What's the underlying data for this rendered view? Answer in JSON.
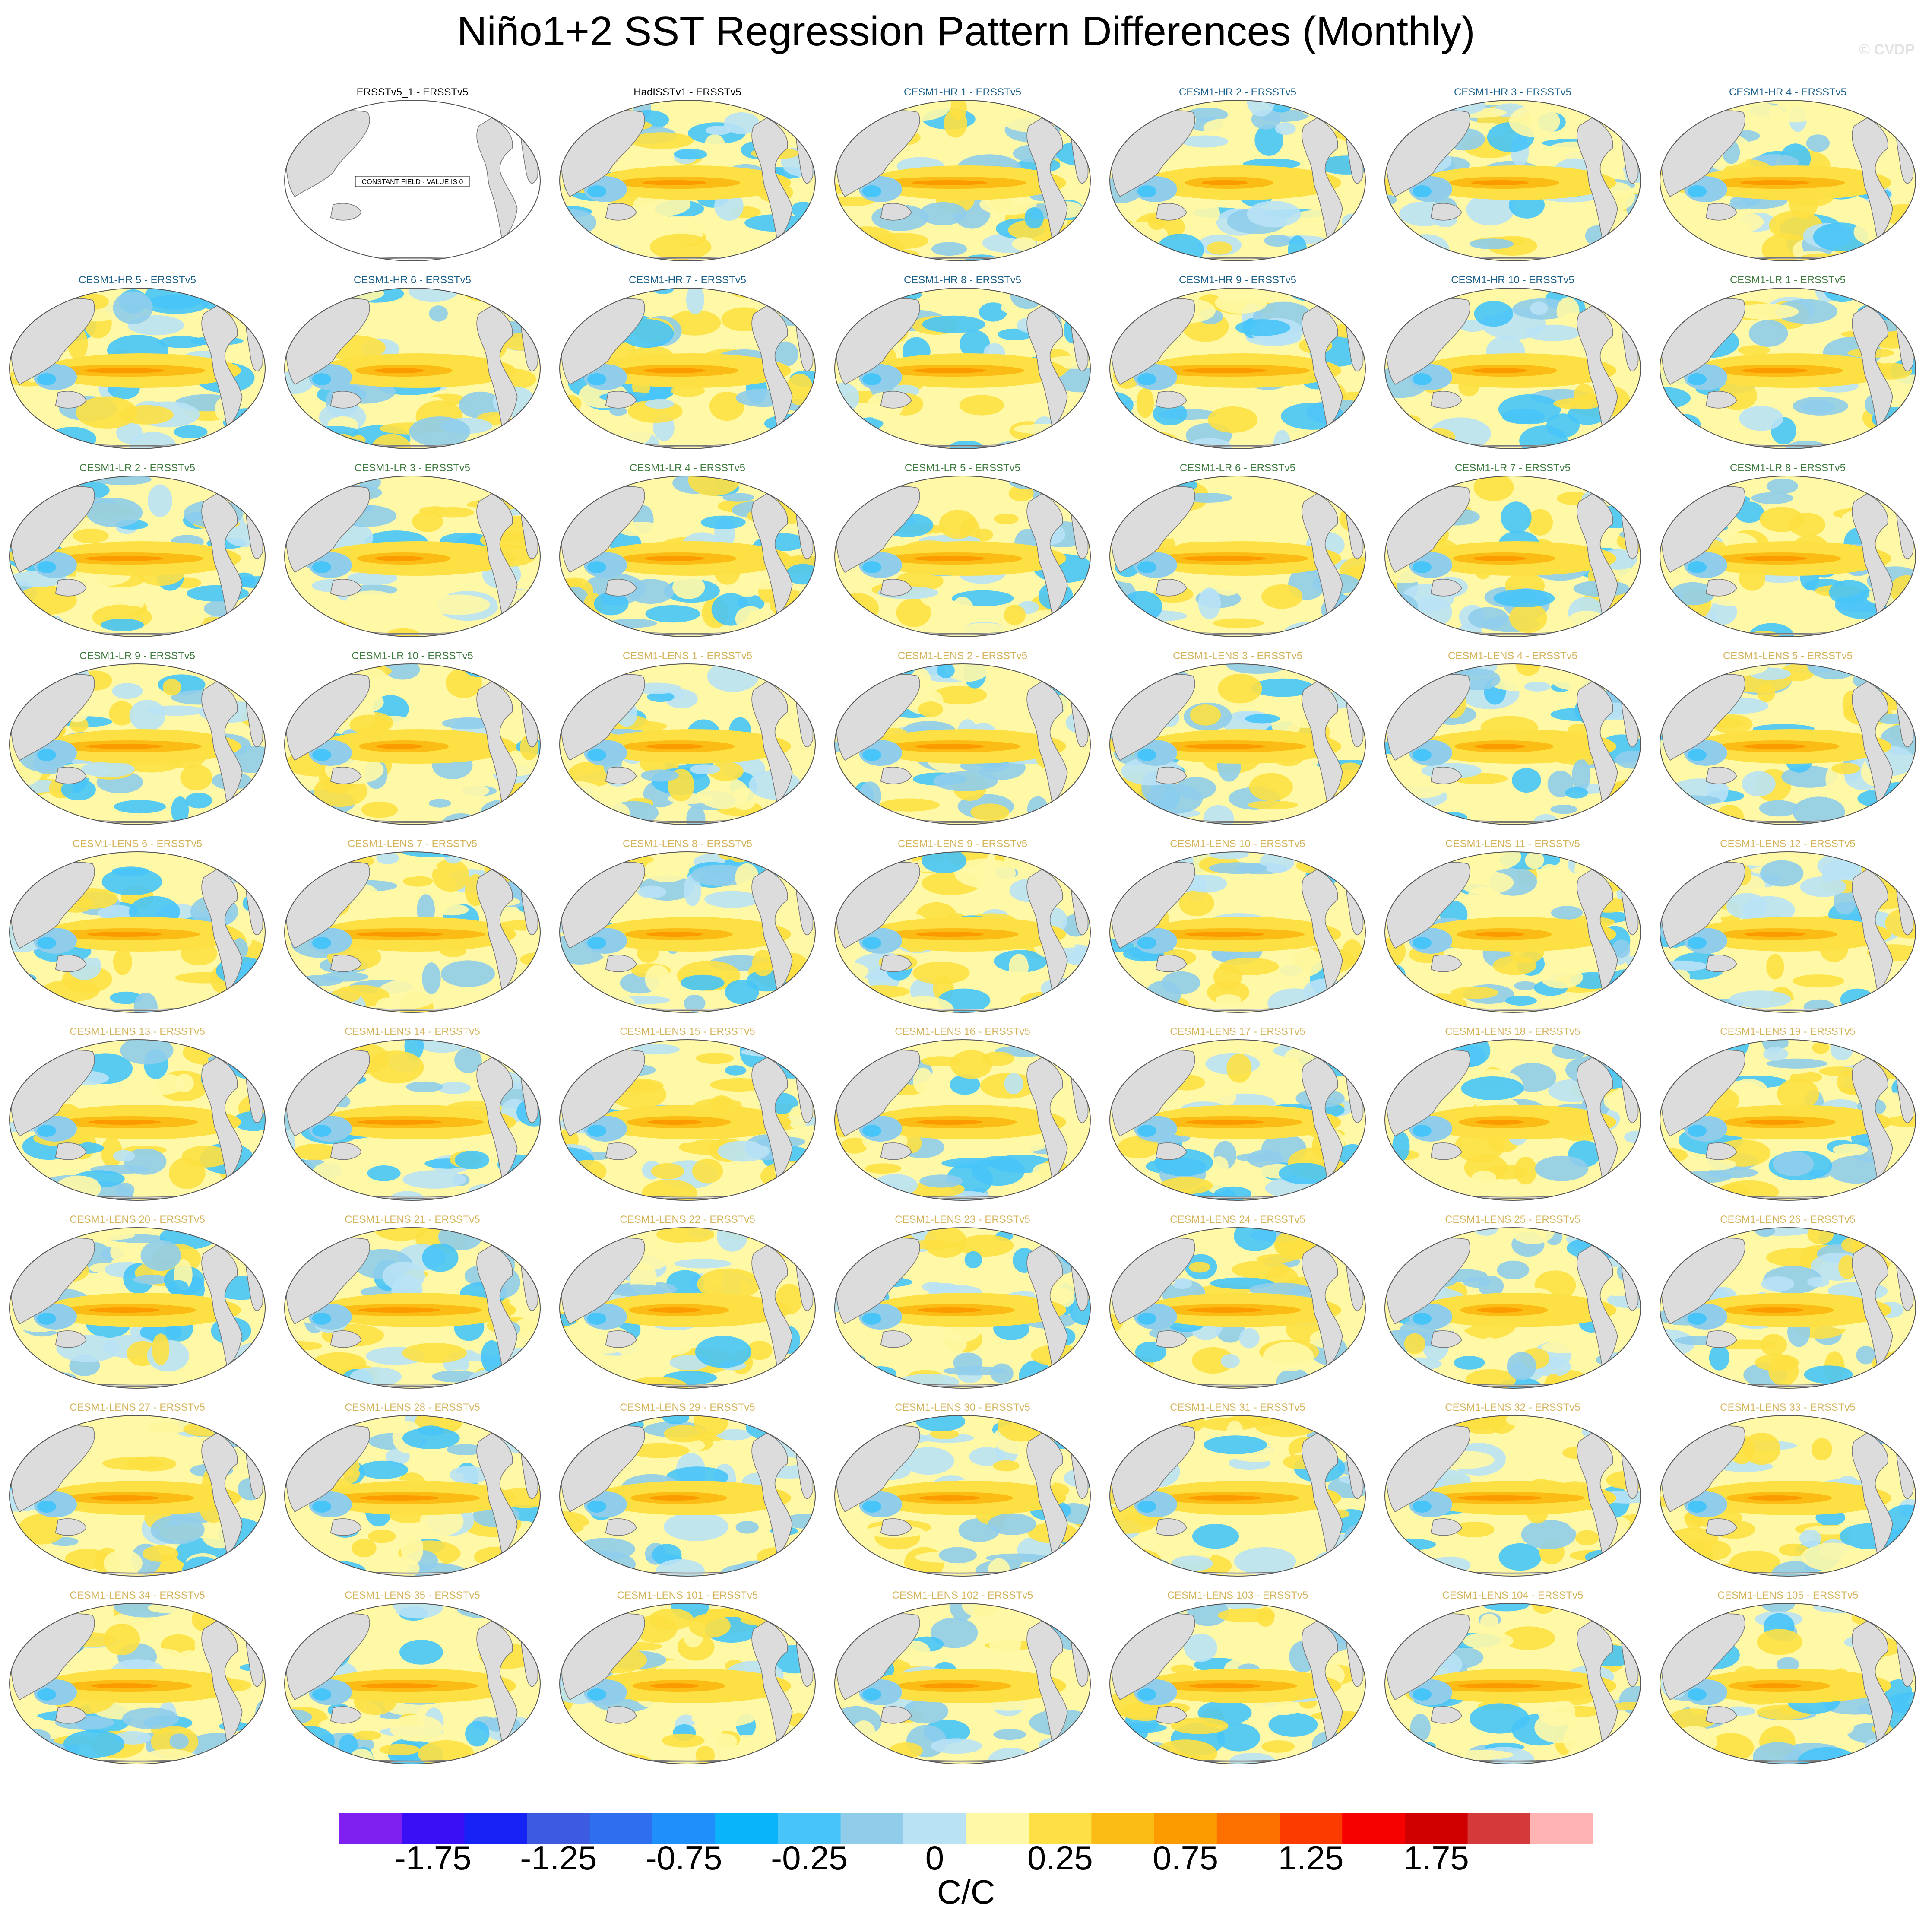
{
  "title": "Niño1+2 SST Regression Pattern Differences (Monthly)",
  "watermark": "© CVDP",
  "colors": {
    "observations": "#000000",
    "cesm_hr": "#1a5f8a",
    "cesm_lr": "#3f7a3f",
    "cesm_lens": "#d4b35a",
    "land": "#dcdcdc"
  },
  "chart_data": {
    "type": "heatmap",
    "projection": "robinson-like global maps, Pacific-centered",
    "variable": "Niño1+2 SST regression pattern difference vs ERSSTv5",
    "panels": [
      {
        "label": "ERSSTv5_1 - ERSSTv5",
        "group": "observations",
        "note": "CONSTANT FIELD - VALUE IS 0"
      },
      {
        "label": "HadISSTv1 - ERSSTv5",
        "group": "observations"
      },
      {
        "label": "CESM1-HR 1 - ERSSTv5",
        "group": "cesm_hr"
      },
      {
        "label": "CESM1-HR 2 - ERSSTv5",
        "group": "cesm_hr"
      },
      {
        "label": "CESM1-HR 3 - ERSSTv5",
        "group": "cesm_hr"
      },
      {
        "label": "CESM1-HR 4 - ERSSTv5",
        "group": "cesm_hr"
      },
      {
        "label": "CESM1-HR 5 - ERSSTv5",
        "group": "cesm_hr"
      },
      {
        "label": "CESM1-HR 6 - ERSSTv5",
        "group": "cesm_hr"
      },
      {
        "label": "CESM1-HR 7 - ERSSTv5",
        "group": "cesm_hr"
      },
      {
        "label": "CESM1-HR 8 - ERSSTv5",
        "group": "cesm_hr"
      },
      {
        "label": "CESM1-HR 9 - ERSSTv5",
        "group": "cesm_hr"
      },
      {
        "label": "CESM1-HR 10 - ERSSTv5",
        "group": "cesm_hr"
      },
      {
        "label": "CESM1-LR 1 - ERSSTv5",
        "group": "cesm_lr"
      },
      {
        "label": "CESM1-LR 2 - ERSSTv5",
        "group": "cesm_lr"
      },
      {
        "label": "CESM1-LR 3 - ERSSTv5",
        "group": "cesm_lr"
      },
      {
        "label": "CESM1-LR 4 - ERSSTv5",
        "group": "cesm_lr"
      },
      {
        "label": "CESM1-LR 5 - ERSSTv5",
        "group": "cesm_lr"
      },
      {
        "label": "CESM1-LR 6 - ERSSTv5",
        "group": "cesm_lr"
      },
      {
        "label": "CESM1-LR 7 - ERSSTv5",
        "group": "cesm_lr"
      },
      {
        "label": "CESM1-LR 8 - ERSSTv5",
        "group": "cesm_lr"
      },
      {
        "label": "CESM1-LR 9 - ERSSTv5",
        "group": "cesm_lr"
      },
      {
        "label": "CESM1-LR 10 - ERSSTv5",
        "group": "cesm_lr"
      },
      {
        "label": "CESM1-LENS 1 - ERSSTv5",
        "group": "cesm_lens"
      },
      {
        "label": "CESM1-LENS 2 - ERSSTv5",
        "group": "cesm_lens"
      },
      {
        "label": "CESM1-LENS 3 - ERSSTv5",
        "group": "cesm_lens"
      },
      {
        "label": "CESM1-LENS 4 - ERSSTv5",
        "group": "cesm_lens"
      },
      {
        "label": "CESM1-LENS 5 - ERSSTv5",
        "group": "cesm_lens"
      },
      {
        "label": "CESM1-LENS 6 - ERSSTv5",
        "group": "cesm_lens"
      },
      {
        "label": "CESM1-LENS 7 - ERSSTv5",
        "group": "cesm_lens"
      },
      {
        "label": "CESM1-LENS 8 - ERSSTv5",
        "group": "cesm_lens"
      },
      {
        "label": "CESM1-LENS 9 - ERSSTv5",
        "group": "cesm_lens"
      },
      {
        "label": "CESM1-LENS 10 - ERSSTv5",
        "group": "cesm_lens"
      },
      {
        "label": "CESM1-LENS 11 - ERSSTv5",
        "group": "cesm_lens"
      },
      {
        "label": "CESM1-LENS 12 - ERSSTv5",
        "group": "cesm_lens"
      },
      {
        "label": "CESM1-LENS 13 - ERSSTv5",
        "group": "cesm_lens"
      },
      {
        "label": "CESM1-LENS 14 - ERSSTv5",
        "group": "cesm_lens"
      },
      {
        "label": "CESM1-LENS 15 - ERSSTv5",
        "group": "cesm_lens"
      },
      {
        "label": "CESM1-LENS 16 - ERSSTv5",
        "group": "cesm_lens"
      },
      {
        "label": "CESM1-LENS 17 - ERSSTv5",
        "group": "cesm_lens"
      },
      {
        "label": "CESM1-LENS 18 - ERSSTv5",
        "group": "cesm_lens"
      },
      {
        "label": "CESM1-LENS 19 - ERSSTv5",
        "group": "cesm_lens"
      },
      {
        "label": "CESM1-LENS 20 - ERSSTv5",
        "group": "cesm_lens"
      },
      {
        "label": "CESM1-LENS 21 - ERSSTv5",
        "group": "cesm_lens"
      },
      {
        "label": "CESM1-LENS 22 - ERSSTv5",
        "group": "cesm_lens"
      },
      {
        "label": "CESM1-LENS 23 - ERSSTv5",
        "group": "cesm_lens"
      },
      {
        "label": "CESM1-LENS 24 - ERSSTv5",
        "group": "cesm_lens"
      },
      {
        "label": "CESM1-LENS 25 - ERSSTv5",
        "group": "cesm_lens"
      },
      {
        "label": "CESM1-LENS 26 - ERSSTv5",
        "group": "cesm_lens"
      },
      {
        "label": "CESM1-LENS 27 - ERSSTv5",
        "group": "cesm_lens"
      },
      {
        "label": "CESM1-LENS 28 - ERSSTv5",
        "group": "cesm_lens"
      },
      {
        "label": "CESM1-LENS 29 - ERSSTv5",
        "group": "cesm_lens"
      },
      {
        "label": "CESM1-LENS 30 - ERSSTv5",
        "group": "cesm_lens"
      },
      {
        "label": "CESM1-LENS 31 - ERSSTv5",
        "group": "cesm_lens"
      },
      {
        "label": "CESM1-LENS 32 - ERSSTv5",
        "group": "cesm_lens"
      },
      {
        "label": "CESM1-LENS 33 - ERSSTv5",
        "group": "cesm_lens"
      },
      {
        "label": "CESM1-LENS 34 - ERSSTv5",
        "group": "cesm_lens"
      },
      {
        "label": "CESM1-LENS 35 - ERSSTv5",
        "group": "cesm_lens"
      },
      {
        "label": "CESM1-LENS 101 - ERSSTv5",
        "group": "cesm_lens"
      },
      {
        "label": "CESM1-LENS 102 - ERSSTv5",
        "group": "cesm_lens"
      },
      {
        "label": "CESM1-LENS 103 - ERSSTv5",
        "group": "cesm_lens"
      },
      {
        "label": "CESM1-LENS 104 - ERSSTv5",
        "group": "cesm_lens"
      },
      {
        "label": "CESM1-LENS 105 - ERSSTv5",
        "group": "cesm_lens"
      }
    ],
    "colorbar": {
      "colors": [
        "#7f1ff0",
        "#3b0ff5",
        "#1722f5",
        "#3d5be0",
        "#2e6ff0",
        "#1f90fa",
        "#0ab4fa",
        "#47c4f8",
        "#8fcdeb",
        "#b9e2f5",
        "#fff8a6",
        "#fde043",
        "#fbbc16",
        "#fc9b00",
        "#fc7000",
        "#fc3b00",
        "#f70000",
        "#d10000",
        "#d43a3a",
        "#ffb3b3"
      ],
      "tick_labels": [
        "-1.75",
        "-1.25",
        "-0.75",
        "-0.25",
        "0",
        "0.25",
        "0.75",
        "1.25",
        "1.75"
      ],
      "unit": "C/C"
    }
  }
}
